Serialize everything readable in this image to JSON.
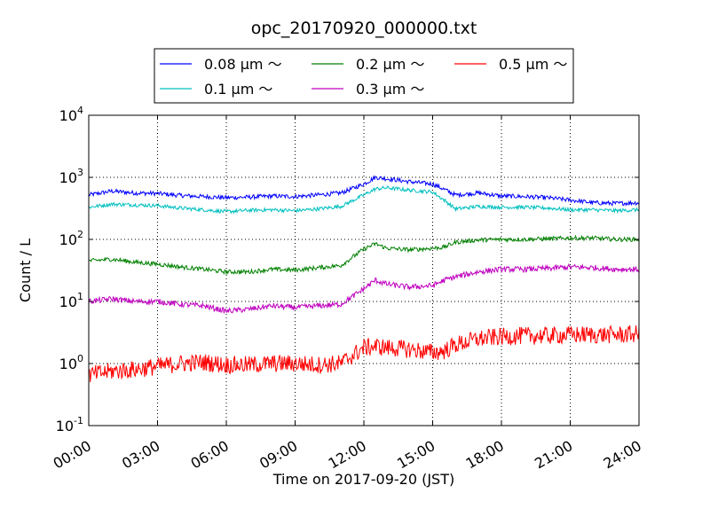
{
  "chart_data": {
    "type": "line",
    "title": "opc_20170920_000000.txt",
    "xlabel": "Time on 2017-09-20 (JST)",
    "ylabel": "Count / L",
    "yscale": "log",
    "ylim": [
      0.1,
      10000
    ],
    "xlim": [
      "00:00",
      "24:00"
    ],
    "x_tick_labels": [
      "00:00",
      "03:00",
      "06:00",
      "09:00",
      "12:00",
      "15:00",
      "18:00",
      "21:00",
      "24:00"
    ],
    "y_tick_labels": [
      {
        "base": "10",
        "exp": "-1"
      },
      {
        "base": "10",
        "exp": "0"
      },
      {
        "base": "10",
        "exp": "1"
      },
      {
        "base": "10",
        "exp": "2"
      },
      {
        "base": "10",
        "exp": "3"
      },
      {
        "base": "10",
        "exp": "4"
      }
    ],
    "grid": true,
    "legend_placement": "top-center, outside plot",
    "x_hours": [
      0,
      1,
      2,
      3,
      4,
      5,
      6,
      7,
      8,
      9,
      10,
      11,
      12,
      12.5,
      13,
      14,
      15,
      15.5,
      16,
      17,
      18,
      19,
      20,
      21,
      22,
      23,
      24
    ],
    "series": [
      {
        "name": "0.08 μm ～",
        "color": "#0000ff",
        "values": [
          520,
          600,
          560,
          550,
          510,
          490,
          470,
          480,
          500,
          490,
          520,
          560,
          780,
          1000,
          950,
          850,
          780,
          640,
          520,
          560,
          500,
          490,
          470,
          430,
          390,
          380,
          390
        ]
      },
      {
        "name": "0.1 μm ～",
        "color": "#00bfbf",
        "values": [
          330,
          370,
          360,
          350,
          320,
          300,
          280,
          295,
          300,
          290,
          310,
          340,
          520,
          650,
          680,
          620,
          580,
          430,
          310,
          340,
          330,
          330,
          320,
          300,
          300,
          290,
          300
        ]
      },
      {
        "name": "0.2 μm ～",
        "color": "#008000",
        "values": [
          45,
          48,
          43,
          40,
          36,
          33,
          30,
          30,
          33,
          32,
          35,
          38,
          70,
          85,
          72,
          68,
          72,
          75,
          90,
          98,
          100,
          100,
          102,
          105,
          105,
          100,
          100
        ]
      },
      {
        "name": "0.3 μm ～",
        "color": "#bf00bf",
        "values": [
          10,
          11,
          10,
          10,
          9,
          8.5,
          7,
          7.5,
          8.5,
          8,
          8.5,
          9,
          16,
          22,
          19,
          17,
          18,
          22,
          25,
          30,
          33,
          33,
          34,
          36,
          35,
          33,
          33
        ]
      },
      {
        "name": "0.5 μm ～",
        "color": "#ff0000",
        "values": [
          0.65,
          0.75,
          0.8,
          0.9,
          1.0,
          1.05,
          0.95,
          0.95,
          1.0,
          1.0,
          0.95,
          1.0,
          1.8,
          1.9,
          1.8,
          1.7,
          1.5,
          1.6,
          2.0,
          2.5,
          2.7,
          2.8,
          2.8,
          2.9,
          2.9,
          2.9,
          3.0
        ]
      }
    ]
  }
}
